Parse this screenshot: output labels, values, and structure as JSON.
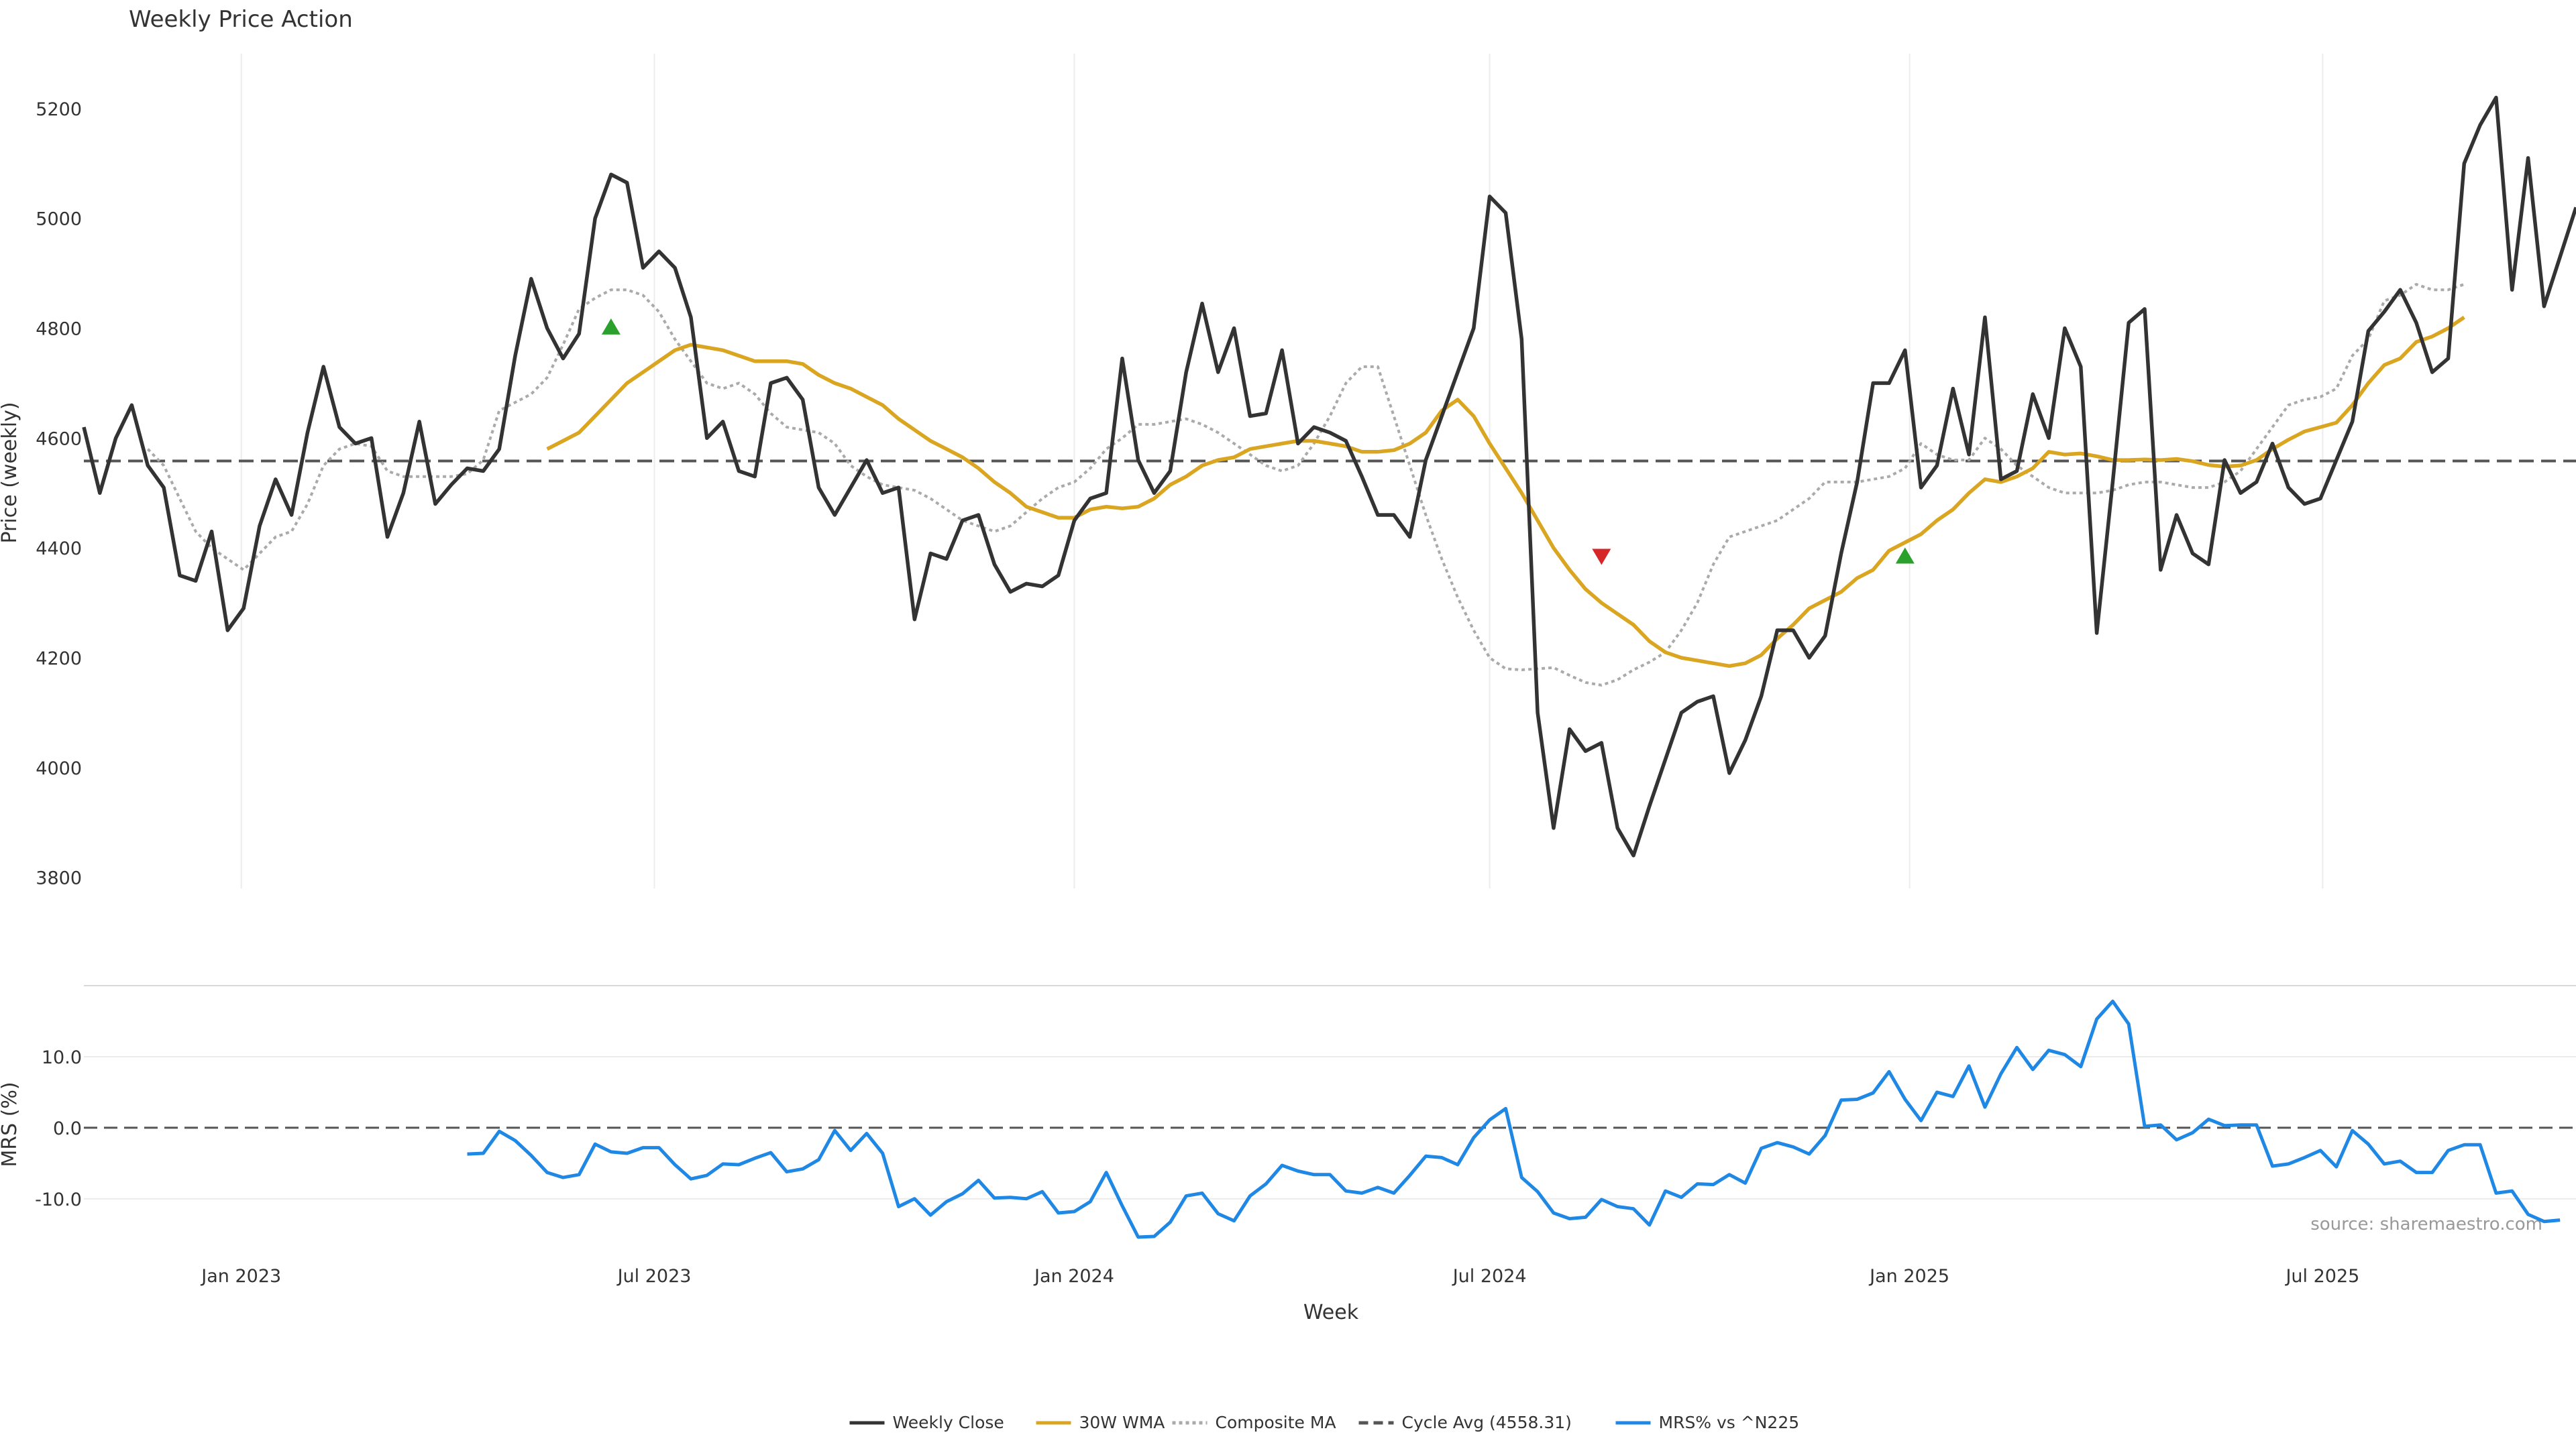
{
  "chart_data": [
    {
      "type": "line",
      "title": "Weekly Price Action",
      "xlabel": "",
      "ylabel": "Price (weekly)",
      "x_start": "2022-10-24",
      "x_step_days": 7,
      "ylim": [
        3780,
        5300
      ],
      "yticks": [
        3800,
        4000,
        4200,
        4400,
        4600,
        4800,
        5000,
        5200
      ],
      "grid": "vertical",
      "series": [
        {
          "name": "Weekly Close",
          "color": "#333333",
          "style": "solid",
          "values": [
            4620,
            4500,
            4600,
            4660,
            4550,
            4510,
            4350,
            4340,
            4430,
            4250,
            4290,
            4440,
            4525,
            4460,
            4610,
            4730,
            4620,
            4590,
            4600,
            4420,
            4500,
            4630,
            4480,
            4515,
            4545,
            4540,
            4580,
            4750,
            4890,
            4800,
            4745,
            4790,
            5000,
            5080,
            5065,
            4910,
            4940,
            4910,
            4820,
            4600,
            4630,
            4540,
            4530,
            4700,
            4710,
            4670,
            4510,
            4460,
            4510,
            4560,
            4500,
            4510,
            4270,
            4390,
            4380,
            4450,
            4460,
            4370,
            4320,
            4335,
            4330,
            4350,
            4450,
            4490,
            4500,
            4745,
            4560,
            4500,
            4540,
            4720,
            4845,
            4720,
            4800,
            4640,
            4645,
            4760,
            4590,
            4620,
            4610,
            4595,
            4530,
            4460,
            4460,
            4420,
            4560,
            4640,
            4720,
            4800,
            5040,
            5010,
            4780,
            4100,
            3890,
            4070,
            4030,
            4045,
            3890,
            3840,
            3930,
            4015,
            4100,
            4120,
            4130,
            3990,
            4050,
            4130,
            4250,
            4250,
            4200,
            4240,
            4390,
            4520,
            4700,
            4700,
            4760,
            4510,
            4550,
            4690,
            4570,
            4820,
            4525,
            4540,
            4680,
            4600,
            4800,
            4730,
            4245,
            4520,
            4810,
            4835,
            4360,
            4460,
            4390,
            4370,
            4560,
            4500,
            4520,
            4590,
            4510,
            4480,
            4490,
            4560,
            4630,
            4795,
            4830,
            4870,
            4810,
            4720,
            4745,
            5100,
            5170,
            5220,
            4870,
            5110,
            4840,
            4930,
            5020
          ]
        },
        {
          "name": "30W WMA",
          "color": "#DAA520",
          "style": "solid",
          "start_index": 29,
          "values": [
            4580,
            4595,
            4610,
            4640,
            4670,
            4700,
            4720,
            4740,
            4760,
            4770,
            4765,
            4760,
            4750,
            4740,
            4740,
            4740,
            4735,
            4715,
            4700,
            4690,
            4675,
            4660,
            4635,
            4615,
            4595,
            4580,
            4565,
            4545,
            4520,
            4500,
            4475,
            4465,
            4455,
            4455,
            4470,
            4475,
            4472,
            4475,
            4490,
            4515,
            4530,
            4550,
            4560,
            4565,
            4580,
            4585,
            4590,
            4595,
            4595,
            4590,
            4585,
            4575,
            4575,
            4578,
            4590,
            4610,
            4650,
            4670,
            4640,
            4590,
            4545,
            4500,
            4450,
            4400,
            4360,
            4325,
            4300,
            4280,
            4260,
            4230,
            4210,
            4200,
            4195,
            4190,
            4185,
            4190,
            4205,
            4235,
            4260,
            4290,
            4305,
            4320,
            4345,
            4360,
            4395,
            4410,
            4425,
            4450,
            4470,
            4500,
            4525,
            4520,
            4530,
            4545,
            4575,
            4570,
            4572,
            4567,
            4560,
            4560,
            4561,
            4560,
            4562,
            4558,
            4551,
            4548,
            4550,
            4560,
            4580,
            4597,
            4612,
            4620,
            4628,
            4660,
            4700,
            4733,
            4745,
            4775,
            4785,
            4800,
            4820
          ]
        },
        {
          "name": "Composite MA",
          "color": "#aaaaaa",
          "style": "dotted",
          "start_index": 4,
          "values": [
            4580,
            4550,
            4490,
            4430,
            4400,
            4380,
            4360,
            4390,
            4420,
            4430,
            4480,
            4550,
            4580,
            4590,
            4585,
            4540,
            4530,
            4530,
            4530,
            4530,
            4535,
            4560,
            4650,
            4665,
            4680,
            4710,
            4770,
            4835,
            4855,
            4870,
            4870,
            4860,
            4830,
            4780,
            4740,
            4700,
            4690,
            4700,
            4680,
            4645,
            4620,
            4615,
            4610,
            4590,
            4550,
            4530,
            4515,
            4510,
            4505,
            4490,
            4470,
            4450,
            4440,
            4430,
            4440,
            4465,
            4490,
            4510,
            4520,
            4545,
            4580,
            4600,
            4625,
            4625,
            4630,
            4635,
            4625,
            4610,
            4590,
            4570,
            4550,
            4540,
            4550,
            4590,
            4640,
            4700,
            4730,
            4730,
            4640,
            4550,
            4460,
            4380,
            4310,
            4250,
            4200,
            4180,
            4178,
            4180,
            4182,
            4168,
            4155,
            4150,
            4160,
            4178,
            4192,
            4210,
            4250,
            4300,
            4370,
            4420,
            4430,
            4440,
            4450,
            4470,
            4490,
            4520,
            4520,
            4520,
            4525,
            4530,
            4545,
            4590,
            4570,
            4560,
            4560,
            4600,
            4580,
            4550,
            4530,
            4510,
            4500,
            4500,
            4500,
            4505,
            4515,
            4520,
            4520,
            4515,
            4510,
            4510,
            4520,
            4540,
            4580,
            4620,
            4660,
            4670,
            4675,
            4690,
            4750,
            4780,
            4850,
            4860,
            4880,
            4870,
            4870,
            4880
          ]
        }
      ],
      "reference_line": {
        "name": "Cycle Avg (4558.31)",
        "value": 4558.31,
        "style": "dashed",
        "color": "#555555"
      },
      "markers": [
        {
          "index": 33,
          "value": 4802,
          "type": "triangle-up",
          "color": "#2ca02c"
        },
        {
          "index": 95,
          "value": 4385,
          "type": "triangle-down",
          "color": "#d62728"
        },
        {
          "index": 114,
          "value": 4385,
          "type": "triangle-up",
          "color": "#2ca02c"
        }
      ]
    },
    {
      "type": "line",
      "xlabel": "Week",
      "ylabel": "MRS (%)",
      "ylim": [
        -17,
        20
      ],
      "yticks": [
        -10,
        0,
        10
      ],
      "ytick_labels": [
        "-10.0",
        "0.0",
        "10.0"
      ],
      "xticks": [
        "Jan 2023",
        "Jul 2023",
        "Jan 2024",
        "Jul 2024",
        "Jan 2025",
        "Jul 2025"
      ],
      "grid": "horizontal",
      "annotation": "source: sharemaestro.com",
      "series": [
        {
          "name": "MRS% vs ^N225",
          "color": "#1f88e5",
          "style": "solid",
          "start_index": 24,
          "values": [
            -3.7,
            -3.6,
            -0.5,
            -1.8,
            -3.9,
            -6.3,
            -7.0,
            -6.6,
            -2.3,
            -3.4,
            -3.6,
            -2.8,
            -2.8,
            -5.2,
            -7.2,
            -6.7,
            -5.1,
            -5.2,
            -4.3,
            -3.5,
            -6.2,
            -5.8,
            -4.5,
            -0.4,
            -3.2,
            -0.8,
            -3.6,
            -11.1,
            -10.0,
            -12.3,
            -10.4,
            -9.3,
            -7.4,
            -9.9,
            -9.8,
            -10.0,
            -9.0,
            -12.0,
            -11.8,
            -10.4,
            -6.3,
            -11.0,
            -15.4,
            -15.3,
            -13.3,
            -9.6,
            -9.2,
            -12.1,
            -13.1,
            -9.6,
            -7.9,
            -5.3,
            -6.1,
            -6.6,
            -6.6,
            -8.9,
            -9.2,
            -8.4,
            -9.2,
            -6.7,
            -4.0,
            -4.2,
            -5.2,
            -1.4,
            1.1,
            2.7,
            -7.0,
            -9.0,
            -12.0,
            -12.8,
            -12.6,
            -10.1,
            -11.1,
            -11.4,
            -13.7,
            -8.9,
            -9.8,
            -7.9,
            -8.0,
            -6.6,
            -7.8,
            -2.9,
            -2.1,
            -2.7,
            -3.7,
            -1.1,
            3.9,
            4.0,
            4.9,
            7.9,
            4.0,
            1.0,
            5.0,
            4.4,
            8.7,
            2.9,
            7.6,
            11.3,
            8.2,
            10.9,
            10.3,
            8.6,
            15.3,
            17.8,
            14.6,
            0.2,
            0.4,
            -1.7,
            -0.7,
            1.2,
            0.3,
            0.4,
            0.4,
            -5.4,
            -5.1,
            -4.2,
            -3.2,
            -5.5,
            -0.4,
            -2.3,
            -5.1,
            -4.7,
            -6.3,
            -6.3,
            -3.2,
            -2.4,
            -2.4,
            -9.2,
            -8.9,
            -12.2,
            -13.2,
            -13.0
          ]
        }
      ],
      "reference_line": {
        "value": 0,
        "style": "dashed",
        "color": "#555555"
      }
    }
  ],
  "legend": {
    "placement": "bottom-center",
    "items": [
      {
        "label": "Weekly Close",
        "color": "#333333",
        "style": "solid"
      },
      {
        "label": "30W WMA",
        "color": "#DAA520",
        "style": "solid"
      },
      {
        "label": "Composite MA",
        "color": "#aaaaaa",
        "style": "dotted"
      },
      {
        "label": "Cycle Avg (4558.31)",
        "color": "#555555",
        "style": "dashed"
      },
      {
        "label": "MRS% vs ^N225",
        "color": "#1f88e5",
        "style": "solid"
      }
    ]
  }
}
